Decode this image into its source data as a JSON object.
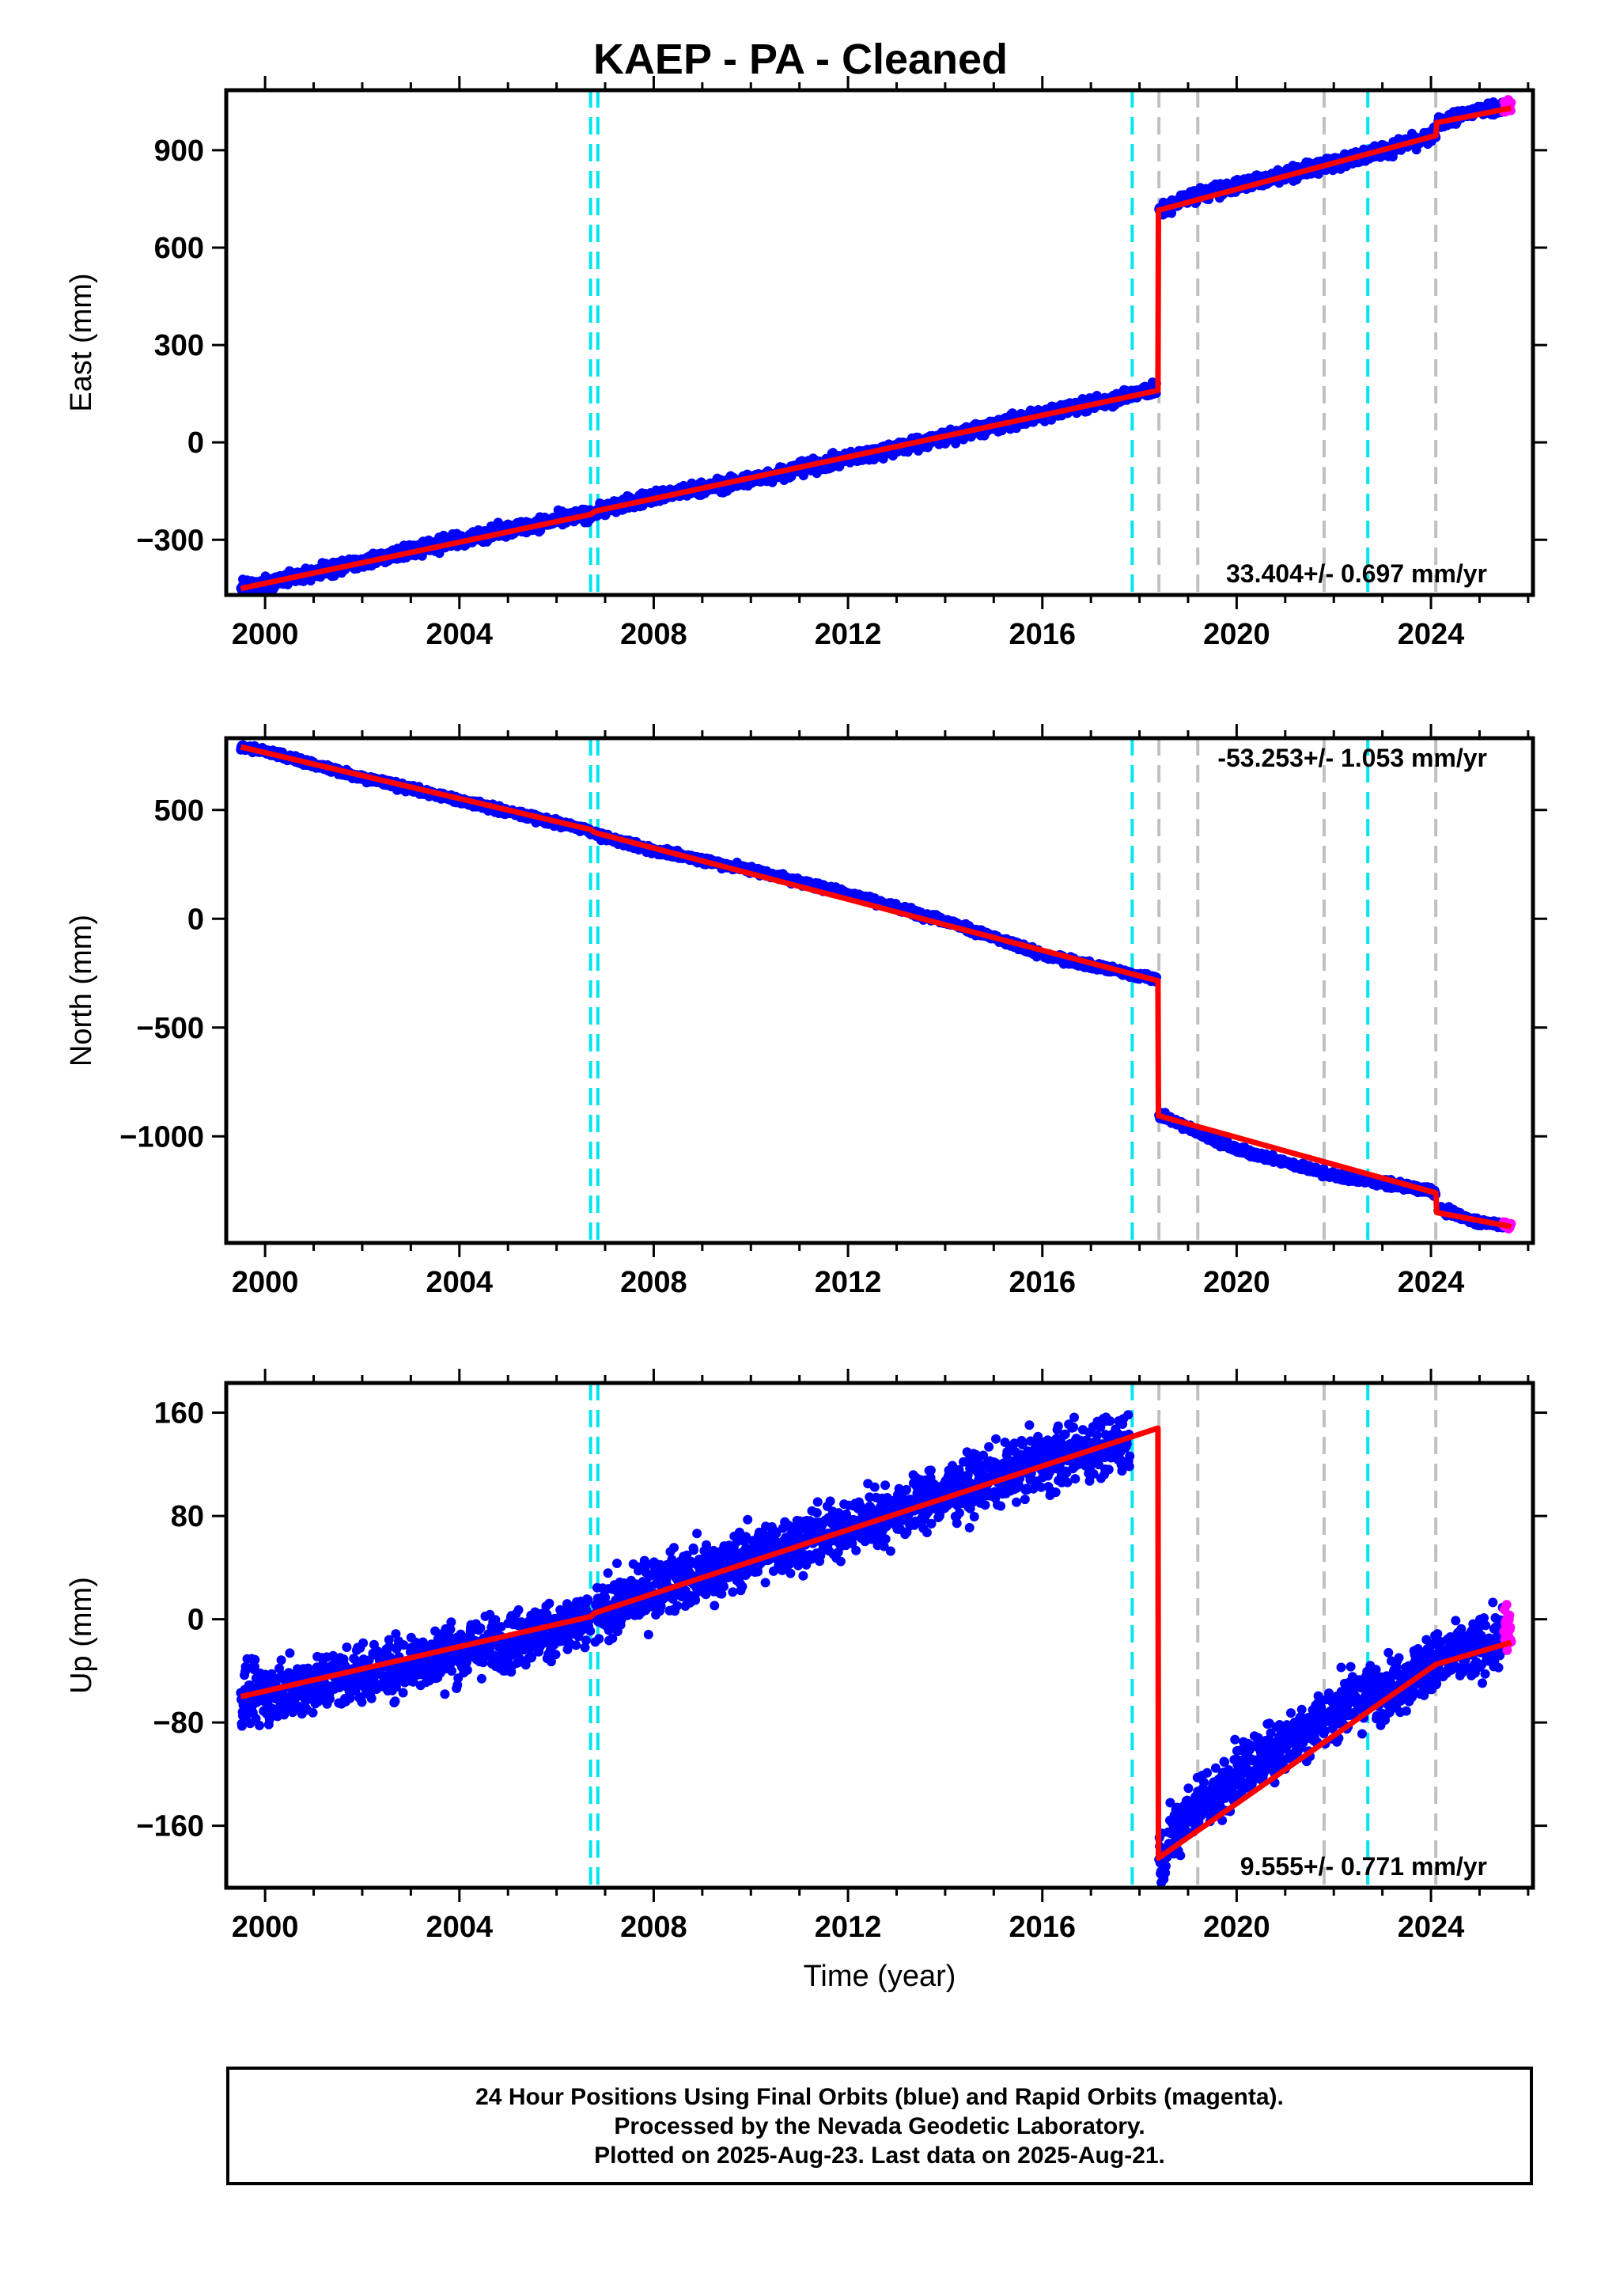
{
  "chart_data": [
    {
      "type": "scatter",
      "title": "KAEP  - PA - Cleaned",
      "ylabel": "East (mm)",
      "xlabel": "",
      "xlim": [
        1999.2,
        2026.1
      ],
      "ylim": [
        -470,
        1085
      ],
      "yticks": [
        -300,
        0,
        300,
        600,
        900
      ],
      "xticks": [
        2000,
        2004,
        2008,
        2012,
        2016,
        2020,
        2024
      ],
      "rate_label": "33.404+/- 0.697 mm/yr",
      "series": [
        {
          "kind": "final_orbits",
          "color": "#0000ff",
          "segments": [
            {
              "x": [
                1999.5,
                2000,
                2002,
                2004,
                2006,
                2006.7
              ],
              "y": [
                -450,
                -435,
                -368,
                -300,
                -240,
                -220
              ]
            },
            {
              "x": [
                2006.8,
                2008,
                2010,
                2012,
                2014,
                2016,
                2018.35
              ],
              "y": [
                -212,
                -168,
                -115,
                -50,
                15,
                85,
                165
              ]
            },
            {
              "x": [
                2018.4,
                2019,
                2020,
                2022,
                2024,
                2024.1
              ],
              "y": [
                710,
                755,
                790,
                860,
                940,
                955
              ]
            },
            {
              "x": [
                2024.15,
                2025.0,
                2025.5
              ],
              "y": [
                985,
                1025,
                1035
              ]
            }
          ],
          "noise": 10
        },
        {
          "kind": "rapid_orbits",
          "color": "#ff00ff",
          "segments": [
            {
              "x": [
                2025.5,
                2025.65
              ],
              "y": [
                1035,
                1040
              ]
            }
          ],
          "noise": 10
        },
        {
          "kind": "model_fit",
          "color": "#ff0000",
          "type": "line",
          "x": [
            1999.5,
            2006.7,
            2006.8,
            2018.38,
            2018.39,
            2024.1,
            2024.12,
            2025.65
          ],
          "y": [
            -450,
            -222,
            -212,
            160,
            715,
            945,
            985,
            1030
          ]
        }
      ],
      "steps": [
        {
          "x": 2006.7,
          "color": "#00e5ee"
        },
        {
          "x": 2006.85,
          "color": "#00e5ee"
        },
        {
          "x": 2017.85,
          "color": "#00e5ee"
        },
        {
          "x": 2018.4,
          "color": "#c0c0c0"
        },
        {
          "x": 2019.2,
          "color": "#c0c0c0"
        },
        {
          "x": 2021.8,
          "color": "#c0c0c0"
        },
        {
          "x": 2022.7,
          "color": "#00e5ee"
        },
        {
          "x": 2024.1,
          "color": "#c0c0c0"
        }
      ]
    },
    {
      "type": "scatter",
      "ylabel": "North (mm)",
      "xlabel": "",
      "xlim": [
        1999.2,
        2026.1
      ],
      "ylim": [
        -1490,
        830
      ],
      "yticks": [
        -1000,
        -500,
        0,
        500
      ],
      "xticks": [
        2000,
        2004,
        2008,
        2012,
        2016,
        2020,
        2024
      ],
      "rate_label": "-53.253+/- 1.053 mm/yr",
      "series": [
        {
          "kind": "final_orbits",
          "color": "#0000ff",
          "segments": [
            {
              "x": [
                1999.5,
                2000,
                2002,
                2004,
                2006,
                2006.7
              ],
              "y": [
                790,
                770,
                650,
                545,
                440,
                405
              ]
            },
            {
              "x": [
                2006.8,
                2008,
                2010,
                2012,
                2014,
                2016,
                2018.35
              ],
              "y": [
                385,
                315,
                225,
                115,
                -10,
                -165,
                -280
              ]
            },
            {
              "x": [
                2018.4,
                2019,
                2020,
                2022,
                2024,
                2024.1
              ],
              "y": [
                -900,
                -960,
                -1060,
                -1180,
                -1250,
                -1265
              ]
            },
            {
              "x": [
                2024.15,
                2025.0,
                2025.5
              ],
              "y": [
                -1330,
                -1395,
                -1405
              ]
            }
          ],
          "noise": 8
        },
        {
          "kind": "rapid_orbits",
          "color": "#ff00ff",
          "segments": [
            {
              "x": [
                2025.5,
                2025.65
              ],
              "y": [
                -1405,
                -1410
              ]
            }
          ],
          "noise": 8
        },
        {
          "kind": "model_fit",
          "color": "#ff0000",
          "type": "line",
          "x": [
            1999.5,
            2006.7,
            2006.8,
            2018.38,
            2018.39,
            2024.1,
            2024.12,
            2025.65
          ],
          "y": [
            790,
            410,
            395,
            -285,
            -905,
            -1260,
            -1350,
            -1415
          ]
        }
      ],
      "steps": [
        {
          "x": 2006.7,
          "color": "#00e5ee"
        },
        {
          "x": 2006.85,
          "color": "#00e5ee"
        },
        {
          "x": 2017.85,
          "color": "#00e5ee"
        },
        {
          "x": 2018.4,
          "color": "#c0c0c0"
        },
        {
          "x": 2019.2,
          "color": "#c0c0c0"
        },
        {
          "x": 2021.8,
          "color": "#c0c0c0"
        },
        {
          "x": 2022.7,
          "color": "#00e5ee"
        },
        {
          "x": 2024.1,
          "color": "#c0c0c0"
        }
      ]
    },
    {
      "type": "scatter",
      "ylabel": "Up (mm)",
      "xlabel": "Time (year)",
      "xlim": [
        1999.2,
        2026.1
      ],
      "ylim": [
        -208,
        183
      ],
      "yticks": [
        -160,
        -80,
        0,
        80,
        160
      ],
      "xticks": [
        2000,
        2004,
        2008,
        2012,
        2016,
        2020,
        2024
      ],
      "rate_label": "9.555+/- 0.771 mm/yr",
      "series": [
        {
          "kind": "final_orbits",
          "color": "#0000ff",
          "segments": [
            {
              "x": [
                1999.5,
                2002,
                2004,
                2006,
                2006.7
              ],
              "y": [
                -62,
                -42,
                -25,
                -8,
                -2
              ]
            },
            {
              "x": [
                2006.8,
                2008,
                2010,
                2012,
                2014,
                2016,
                2017.8
              ],
              "y": [
                2,
                25,
                48,
                72,
                98,
                122,
                140
              ]
            },
            {
              "x": [
                2018.4,
                2019,
                2020,
                2021,
                2022,
                2023,
                2024,
                2025.5
              ],
              "y": [
                -185,
                -150,
                -120,
                -95,
                -70,
                -55,
                -35,
                -15
              ]
            }
          ],
          "noise": 11
        },
        {
          "kind": "rapid_orbits",
          "color": "#ff00ff",
          "segments": [
            {
              "x": [
                2025.5,
                2025.65
              ],
              "y": [
                -8,
                -8
              ]
            }
          ],
          "noise": 12
        },
        {
          "kind": "model_fit",
          "color": "#ff0000",
          "type": "line",
          "x": [
            1999.5,
            2006.7,
            2006.8,
            2018.38,
            2018.39,
            2024.1,
            2025.65
          ],
          "y": [
            -60,
            2,
            5,
            148,
            -185,
            -35,
            -18
          ]
        }
      ],
      "steps": [
        {
          "x": 2006.7,
          "color": "#00e5ee"
        },
        {
          "x": 2006.85,
          "color": "#00e5ee"
        },
        {
          "x": 2017.85,
          "color": "#00e5ee"
        },
        {
          "x": 2018.4,
          "color": "#c0c0c0"
        },
        {
          "x": 2019.2,
          "color": "#c0c0c0"
        },
        {
          "x": 2021.8,
          "color": "#c0c0c0"
        },
        {
          "x": 2022.7,
          "color": "#00e5ee"
        },
        {
          "x": 2024.1,
          "color": "#c0c0c0"
        }
      ]
    }
  ],
  "footer": {
    "line1": "24 Hour Positions Using Final Orbits (blue) and Rapid Orbits (magenta).",
    "line2": "Processed by the Nevada Geodetic Laboratory.",
    "line3": "Plotted on 2025-Aug-23. Last data on 2025-Aug-21."
  }
}
